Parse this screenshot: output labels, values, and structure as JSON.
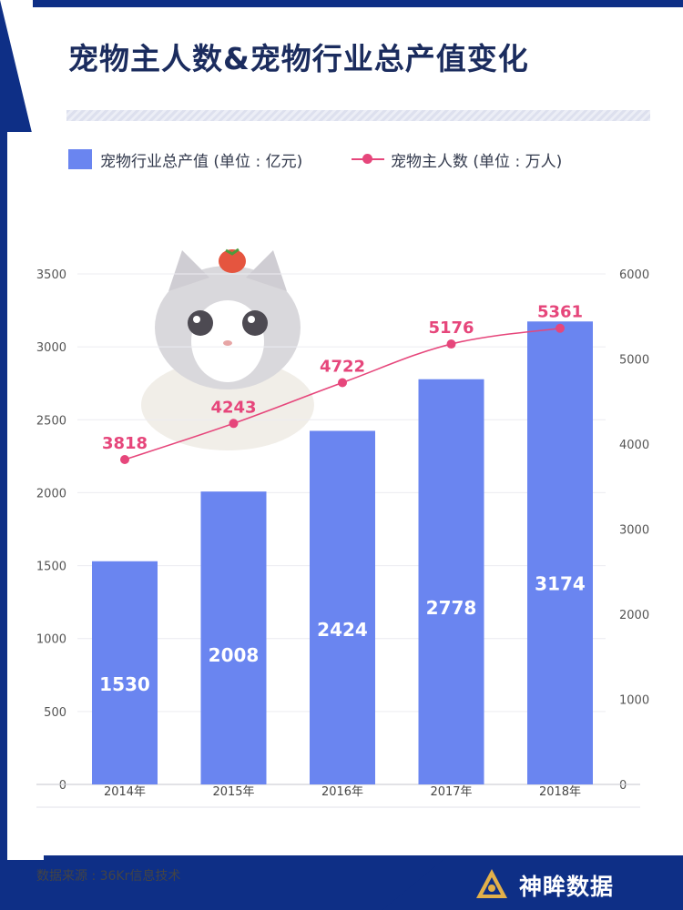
{
  "title": "宠物主人数&宠物行业总产值变化",
  "legend": {
    "bar_label": "宠物行业总产值 (单位 : 亿元)",
    "line_label": "宠物主人数 (单位 : 万人)"
  },
  "source": "数据来源 : 36Kr信息技术",
  "brand": {
    "name": "神眸数据"
  },
  "colors": {
    "bar": "#6a85f0",
    "line": "#e6467b",
    "navy": "#0e2f86",
    "title": "#1b2c5e"
  },
  "chart_data": {
    "type": "bar",
    "categories": [
      "2014年",
      "2015年",
      "2016年",
      "2017年",
      "2018年"
    ],
    "series": [
      {
        "name": "宠物行业总产值 (单位 : 亿元)",
        "type": "bar",
        "axis": "left",
        "values": [
          1530,
          2008,
          2424,
          2778,
          3174
        ]
      },
      {
        "name": "宠物主人数 (单位 : 万人)",
        "type": "line",
        "axis": "right",
        "values": [
          3818,
          4243,
          4722,
          5176,
          5361
        ]
      }
    ],
    "ylim_left": [
      0,
      3500
    ],
    "yticks_left": [
      0,
      500,
      1000,
      1500,
      2000,
      2500,
      3000,
      3500
    ],
    "ylim_right": [
      0,
      6000
    ],
    "yticks_right": [
      0,
      1000,
      2000,
      3000,
      4000,
      5000,
      6000
    ],
    "grid": true,
    "legend_position": "top-left"
  }
}
